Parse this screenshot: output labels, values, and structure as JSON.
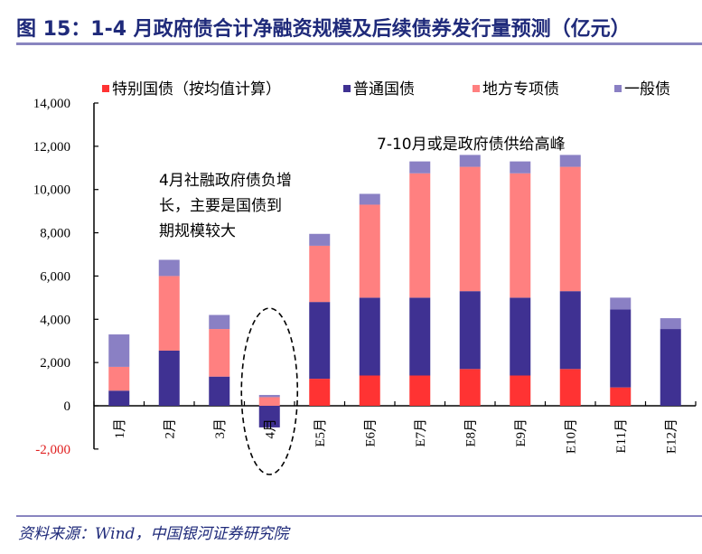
{
  "title": "图 15：1-4 月政府债合计净融资规模及后续债券发行量预测（亿元）",
  "source": "资料来源：Wind，中国银河证券研究院",
  "chart_data": {
    "type": "bar",
    "stacked": true,
    "title": "",
    "xlabel": "",
    "ylabel": "",
    "ylim": [
      -2000,
      14000
    ],
    "yticks": [
      -2000,
      0,
      2000,
      4000,
      6000,
      8000,
      10000,
      12000,
      14000
    ],
    "ytick_labels": [
      "-2,000",
      "0",
      "2,000",
      "4,000",
      "6,000",
      "8,000",
      "10,000",
      "12,000",
      "14,000"
    ],
    "grid": false,
    "legend_position": "top",
    "categories": [
      "1月",
      "2月",
      "3月",
      "4月",
      "E5月",
      "E6月",
      "E7月",
      "E8月",
      "E9月",
      "E10月",
      "E11月",
      "E12月"
    ],
    "series": [
      {
        "name": "特别国债（按均值计算）",
        "color": "#ff3333",
        "values": [
          0,
          0,
          0,
          0,
          1250,
          1400,
          1400,
          1700,
          1400,
          1700,
          850,
          0
        ]
      },
      {
        "name": "普通国债",
        "color": "#3f3192",
        "values": [
          700,
          2550,
          1350,
          -1000,
          3550,
          3600,
          3600,
          3600,
          3600,
          3600,
          3600,
          3550
        ]
      },
      {
        "name": "地方专项债",
        "color": "#ff8080",
        "values": [
          1100,
          3450,
          2200,
          400,
          2600,
          4300,
          5750,
          5750,
          5750,
          5750,
          0,
          0
        ]
      },
      {
        "name": "一般债",
        "color": "#8a80c4",
        "values": [
          1500,
          750,
          650,
          100,
          550,
          500,
          550,
          550,
          550,
          550,
          550,
          500
        ]
      }
    ],
    "annotations": [
      {
        "lines": [
          "4月社融政府债负增",
          "长，主要是国债到",
          "期规模较大"
        ]
      },
      {
        "lines": [
          "7-10月或是政府债供给高峰"
        ]
      }
    ],
    "highlight": "4月"
  }
}
